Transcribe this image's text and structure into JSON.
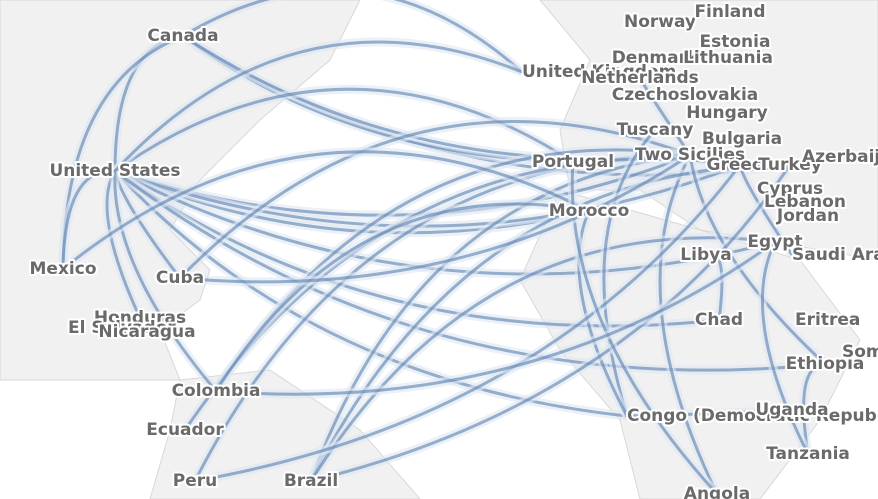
{
  "labels": [
    "Canada",
    "Norway",
    "Finland",
    "Estonia",
    "Denmark",
    "Lithuania",
    "United Kingdom",
    "Netherlands",
    "Czechoslovakia",
    "Hungary",
    "Bulgaria",
    "Tuscany",
    "Two Sicilies",
    "Greece",
    "Turkey",
    "Azerbaijan",
    "Cyprus",
    "Lebanon",
    "Jordan",
    "Egypt",
    "Saudi Arabia",
    "Portugal",
    "Morocco",
    "Libya",
    "Chad",
    "Eritrea",
    "Ethiopia",
    "Somalia",
    "United States",
    "Mexico",
    "Cuba",
    "Honduras",
    "El Salvador",
    "Nicaragua",
    "Colombia",
    "Ecuador",
    "Peru",
    "Brazil",
    "Congo (Democratic Republic of the)",
    "Uganda",
    "Tanzania",
    "Angola"
  ]
}
